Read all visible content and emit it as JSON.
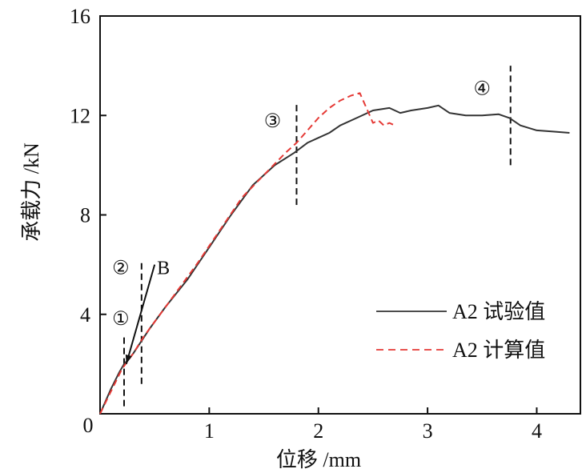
{
  "chart_data": {
    "type": "line",
    "xlabel": "位移 /mm",
    "ylabel": "承载力 /kN",
    "xlim": [
      0,
      4.4
    ],
    "ylim": [
      0,
      16
    ],
    "x_ticks": [
      {
        "value": 0,
        "label": "0"
      },
      {
        "value": 1,
        "label": "1"
      },
      {
        "value": 2,
        "label": "2"
      },
      {
        "value": 3,
        "label": "3"
      },
      {
        "value": 4,
        "label": "4"
      }
    ],
    "y_ticks": [
      {
        "value": 4,
        "label": "4"
      },
      {
        "value": 8,
        "label": "8"
      },
      {
        "value": 12,
        "label": "12"
      },
      {
        "value": 16,
        "label": "16"
      }
    ],
    "grid": false,
    "legend_position": "bottom-right",
    "series": [
      {
        "name": "A2 试验值",
        "style": "solid",
        "color": "#333333",
        "x": [
          0,
          0.1,
          0.18,
          0.22,
          0.3,
          0.45,
          0.6,
          0.8,
          1.0,
          1.2,
          1.4,
          1.6,
          1.78,
          1.9,
          2.0,
          2.1,
          2.2,
          2.35,
          2.5,
          2.65,
          2.75,
          2.85,
          3.0,
          3.1,
          3.2,
          3.35,
          3.5,
          3.65,
          3.75,
          3.85,
          4.0,
          4.15,
          4.3
        ],
        "y": [
          0,
          1.0,
          1.7,
          2.0,
          2.4,
          3.4,
          4.3,
          5.4,
          6.7,
          8.0,
          9.2,
          10.0,
          10.5,
          10.9,
          11.1,
          11.3,
          11.6,
          11.9,
          12.2,
          12.3,
          12.1,
          12.2,
          12.3,
          12.4,
          12.1,
          12.0,
          12.0,
          12.05,
          11.9,
          11.6,
          11.4,
          11.35,
          11.3
        ]
      },
      {
        "name": "A2 计算值",
        "style": "dashed",
        "color": "#e53935",
        "x": [
          0,
          0.1,
          0.2,
          0.3,
          0.4,
          0.5,
          0.7,
          0.9,
          1.1,
          1.3,
          1.5,
          1.7,
          1.8,
          1.9,
          2.0,
          2.1,
          2.2,
          2.3,
          2.38,
          2.45,
          2.5,
          2.55,
          2.6,
          2.65,
          2.7
        ],
        "y": [
          0,
          0.9,
          1.8,
          2.4,
          3.1,
          3.7,
          4.9,
          6.1,
          7.4,
          8.7,
          9.6,
          10.5,
          10.9,
          11.4,
          11.9,
          12.3,
          12.6,
          12.8,
          12.9,
          12.2,
          11.7,
          11.8,
          11.6,
          11.7,
          11.6
        ]
      }
    ],
    "annotations": [
      {
        "label": "①",
        "x": 0.19,
        "y": 3.75
      },
      {
        "label": "②",
        "x": 0.19,
        "y": 5.8
      },
      {
        "label": "B",
        "x": 0.58,
        "y": 5.8
      },
      {
        "label": "③",
        "x": 1.58,
        "y": 11.7
      },
      {
        "label": "④",
        "x": 3.5,
        "y": 13.0
      }
    ],
    "vertical_markers": [
      {
        "x": 0.22,
        "y_from": 0.3,
        "y_to": 3.2
      },
      {
        "x": 0.38,
        "y_from": 1.2,
        "y_to": 6.1
      },
      {
        "x": 1.8,
        "y_from": 8.4,
        "y_to": 12.5
      },
      {
        "x": 3.76,
        "y_from": 10.0,
        "y_to": 14.0
      }
    ],
    "arrow": {
      "from_x": 0.5,
      "from_y": 6.0,
      "to_x": 0.24,
      "to_y": 2.0
    }
  }
}
